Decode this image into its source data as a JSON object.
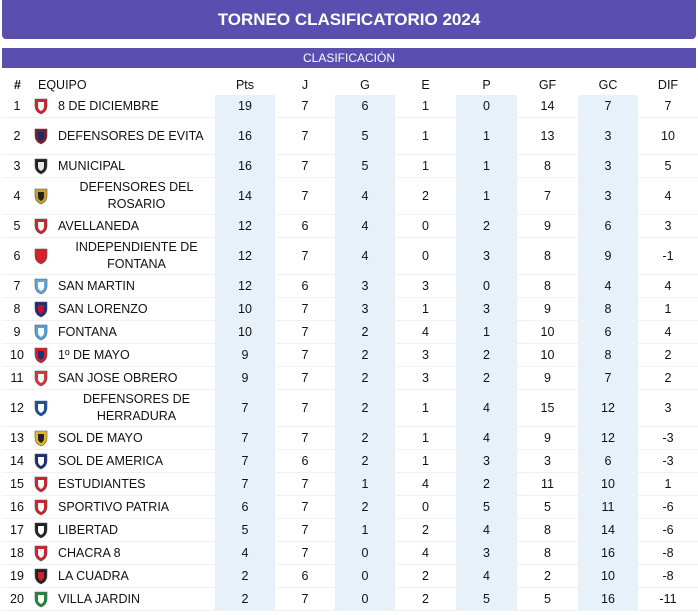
{
  "header": {
    "title": "TORNEO CLASIFICATORIO 2024",
    "subtitle": "CLASIFICACIÓN"
  },
  "columns": [
    "#",
    "EQUIPO",
    "Pts",
    "J",
    "G",
    "E",
    "P",
    "GF",
    "GC",
    "DIF"
  ],
  "colors": {
    "header_bg": "#5a4fb0",
    "stripe": "#e6f1f9"
  },
  "rows": [
    {
      "pos": "1",
      "team": "8 DE DICIEMBRE",
      "pts": "19",
      "j": "7",
      "g": "6",
      "e": "1",
      "p": "0",
      "gf": "14",
      "gc": "7",
      "dif": "7",
      "crest_icon": "shield-red-white-icon",
      "c1": "#d6202a",
      "c2": "#ffffff",
      "two_line": false
    },
    {
      "pos": "2",
      "team": "DEFENSORES DE EVITA",
      "pts": "16",
      "j": "7",
      "g": "5",
      "e": "1",
      "p": "1",
      "gf": "13",
      "gc": "3",
      "dif": "10",
      "crest_icon": "shield-maroon-icon",
      "c1": "#7a1c2a",
      "c2": "#1b2a6b",
      "two_line": true
    },
    {
      "pos": "3",
      "team": "MUNICIPAL",
      "pts": "16",
      "j": "7",
      "g": "5",
      "e": "1",
      "p": "1",
      "gf": "8",
      "gc": "3",
      "dif": "5",
      "crest_icon": "shield-black-white-icon",
      "c1": "#222222",
      "c2": "#e8e8e8",
      "two_line": false
    },
    {
      "pos": "4",
      "team": "DEFENSORES DEL ROSARIO",
      "pts": "14",
      "j": "7",
      "g": "4",
      "e": "2",
      "p": "1",
      "gf": "7",
      "gc": "3",
      "dif": "4",
      "crest_icon": "shield-gold-black-icon",
      "c1": "#c9a227",
      "c2": "#222222",
      "two_line": true
    },
    {
      "pos": "5",
      "team": "AVELLANEDA",
      "pts": "12",
      "j": "6",
      "g": "4",
      "e": "0",
      "p": "2",
      "gf": "9",
      "gc": "6",
      "dif": "3",
      "crest_icon": "shield-red-white-icon",
      "c1": "#d6202a",
      "c2": "#ffffff",
      "two_line": false
    },
    {
      "pos": "6",
      "team": "INDEPENDIENTE DE FONTANA",
      "pts": "12",
      "j": "7",
      "g": "4",
      "e": "0",
      "p": "3",
      "gf": "8",
      "gc": "9",
      "dif": "-1",
      "crest_icon": "shield-red-icon",
      "c1": "#d6202a",
      "c2": "#d6202a",
      "two_line": true
    },
    {
      "pos": "7",
      "team": "SAN MARTIN",
      "pts": "12",
      "j": "6",
      "g": "3",
      "e": "3",
      "p": "0",
      "gf": "8",
      "gc": "4",
      "dif": "4",
      "crest_icon": "shield-lightblue-icon",
      "c1": "#5fa8e0",
      "c2": "#ffffff",
      "two_line": false
    },
    {
      "pos": "8",
      "team": "SAN LORENZO",
      "pts": "10",
      "j": "7",
      "g": "3",
      "e": "1",
      "p": "3",
      "gf": "9",
      "gc": "8",
      "dif": "1",
      "crest_icon": "shield-blue-red-icon",
      "c1": "#1c2f7a",
      "c2": "#c8102e",
      "two_line": false
    },
    {
      "pos": "9",
      "team": "FONTANA",
      "pts": "10",
      "j": "7",
      "g": "2",
      "e": "4",
      "p": "1",
      "gf": "10",
      "gc": "6",
      "dif": "4",
      "crest_icon": "shield-skyblue-stripes-icon",
      "c1": "#4ba3e3",
      "c2": "#ffffff",
      "two_line": false
    },
    {
      "pos": "10",
      "team": "1º DE MAYO",
      "pts": "9",
      "j": "7",
      "g": "2",
      "e": "3",
      "p": "2",
      "gf": "10",
      "gc": "8",
      "dif": "2",
      "crest_icon": "shield-red-blue-icon",
      "c1": "#d6202a",
      "c2": "#1c2f7a",
      "two_line": false
    },
    {
      "pos": "11",
      "team": "SAN JOSE OBRERO",
      "pts": "9",
      "j": "7",
      "g": "2",
      "e": "3",
      "p": "2",
      "gf": "9",
      "gc": "7",
      "dif": "2",
      "crest_icon": "shield-red-white-icon",
      "c1": "#e0303a",
      "c2": "#ffffff",
      "two_line": false
    },
    {
      "pos": "12",
      "team": "DEFENSORES DE HERRADURA",
      "pts": "7",
      "j": "7",
      "g": "2",
      "e": "1",
      "p": "4",
      "gf": "15",
      "gc": "12",
      "dif": "3",
      "crest_icon": "shield-blue-white-stripes-icon",
      "c1": "#1c4fa0",
      "c2": "#ffffff",
      "two_line": true
    },
    {
      "pos": "13",
      "team": "SOL DE MAYO",
      "pts": "7",
      "j": "7",
      "g": "2",
      "e": "1",
      "p": "4",
      "gf": "9",
      "gc": "12",
      "dif": "-3",
      "crest_icon": "shield-yellow-black-icon",
      "c1": "#e6b820",
      "c2": "#222222",
      "two_line": false
    },
    {
      "pos": "14",
      "team": "SOL DE AMERICA",
      "pts": "7",
      "j": "6",
      "g": "2",
      "e": "1",
      "p": "3",
      "gf": "3",
      "gc": "6",
      "dif": "-3",
      "crest_icon": "shield-navy-icon",
      "c1": "#1c2f7a",
      "c2": "#ffffff",
      "two_line": false
    },
    {
      "pos": "15",
      "team": "ESTUDIANTES",
      "pts": "7",
      "j": "7",
      "g": "1",
      "e": "4",
      "p": "2",
      "gf": "11",
      "gc": "10",
      "dif": "1",
      "crest_icon": "shield-red-white-stripes-icon",
      "c1": "#d6202a",
      "c2": "#ffffff",
      "two_line": false
    },
    {
      "pos": "16",
      "team": "SPORTIVO PATRIA",
      "pts": "6",
      "j": "7",
      "g": "2",
      "e": "0",
      "p": "5",
      "gf": "5",
      "gc": "11",
      "dif": "-6",
      "crest_icon": "shield-red-white-icon",
      "c1": "#d6202a",
      "c2": "#ffffff",
      "two_line": false
    },
    {
      "pos": "17",
      "team": "LIBERTAD",
      "pts": "5",
      "j": "7",
      "g": "1",
      "e": "2",
      "p": "4",
      "gf": "8",
      "gc": "14",
      "dif": "-6",
      "crest_icon": "shield-black-white-stripes-icon",
      "c1": "#222222",
      "c2": "#ffffff",
      "two_line": false
    },
    {
      "pos": "18",
      "team": "CHACRA 8",
      "pts": "4",
      "j": "7",
      "g": "0",
      "e": "4",
      "p": "3",
      "gf": "8",
      "gc": "16",
      "dif": "-8",
      "crest_icon": "shield-red-white-icon",
      "c1": "#d6202a",
      "c2": "#ffffff",
      "two_line": false
    },
    {
      "pos": "19",
      "team": "LA CUADRA",
      "pts": "2",
      "j": "6",
      "g": "0",
      "e": "2",
      "p": "4",
      "gf": "2",
      "gc": "10",
      "dif": "-8",
      "crest_icon": "shield-black-red-icon",
      "c1": "#222222",
      "c2": "#d6202a",
      "two_line": false
    },
    {
      "pos": "20",
      "team": "VILLA JARDIN",
      "pts": "2",
      "j": "7",
      "g": "0",
      "e": "2",
      "p": "5",
      "gf": "5",
      "gc": "16",
      "dif": "-11",
      "crest_icon": "shield-green-white-icon",
      "c1": "#1f8a3a",
      "c2": "#ffffff",
      "two_line": false
    }
  ]
}
